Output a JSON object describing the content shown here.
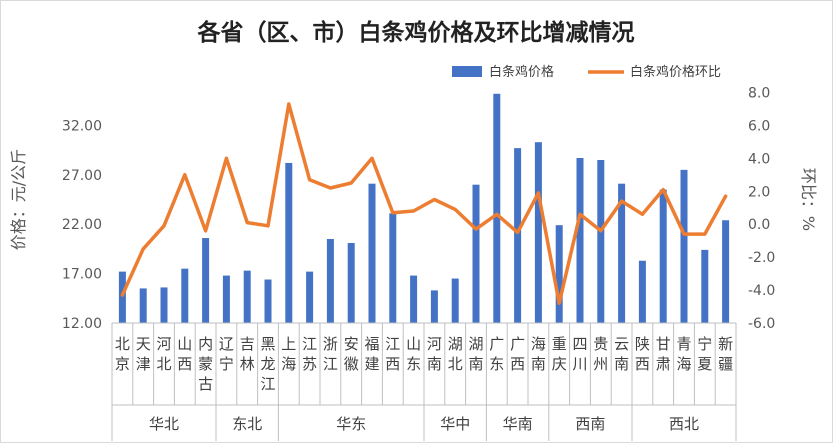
{
  "chart_data": {
    "type": "bar+line",
    "title": "各省（区、市）白条鸡价格及环比增减情况",
    "ylabel_left": "价格：元/公斤",
    "ylabel_right": "环比：%",
    "ylim_left": [
      12,
      37
    ],
    "ylim_right": [
      -6,
      9
    ],
    "yticks_left": [
      "12.00",
      "17.00",
      "22.00",
      "27.00",
      "32.00"
    ],
    "yticks_right": [
      "-6.0",
      "-4.0",
      "-2.0",
      "0.0",
      "2.0",
      "4.0",
      "6.0",
      "8.0"
    ],
    "legend_position": "top-right",
    "grid": false,
    "categories": [
      "北京",
      "天津",
      "河北",
      "山西",
      "内蒙古",
      "辽宁",
      "吉林",
      "黑龙江",
      "上海",
      "江苏",
      "浙江",
      "安徽",
      "福建",
      "江西",
      "山东",
      "河南",
      "湖北",
      "湖南",
      "广东",
      "广西",
      "海南",
      "重庆",
      "四川",
      "贵州",
      "云南",
      "陕西",
      "甘肃",
      "青海",
      "宁夏",
      "新疆"
    ],
    "groups": [
      {
        "name": "华北",
        "count": 5
      },
      {
        "name": "东北",
        "count": 3
      },
      {
        "name": "华东",
        "count": 7
      },
      {
        "name": "华中",
        "count": 3
      },
      {
        "name": "华南",
        "count": 3
      },
      {
        "name": "西南",
        "count": 4
      },
      {
        "name": "西北",
        "count": 5
      }
    ],
    "series": [
      {
        "name": "白条鸡价格",
        "type": "bar",
        "axis": "left",
        "color": "#4472C4",
        "values": [
          17.2,
          15.5,
          15.6,
          17.5,
          20.6,
          16.8,
          17.3,
          16.4,
          28.2,
          17.2,
          20.5,
          20.1,
          26.1,
          23.1,
          16.8,
          15.3,
          16.5,
          26.0,
          35.2,
          29.7,
          30.3,
          21.9,
          28.7,
          28.5,
          26.1,
          18.3,
          25.5,
          27.5,
          19.4,
          22.4
        ]
      },
      {
        "name": "白条鸡价格环比",
        "type": "line",
        "axis": "right",
        "color": "#ED7D31",
        "values": [
          -4.3,
          -1.5,
          -0.1,
          3.0,
          -0.4,
          4.0,
          0.1,
          -0.1,
          7.3,
          2.7,
          2.2,
          2.5,
          4.0,
          0.7,
          0.8,
          1.5,
          0.9,
          -0.3,
          0.6,
          -0.5,
          1.9,
          -4.8,
          0.6,
          -0.4,
          1.4,
          0.6,
          2.1,
          -0.6,
          -0.6,
          1.7
        ]
      }
    ]
  }
}
